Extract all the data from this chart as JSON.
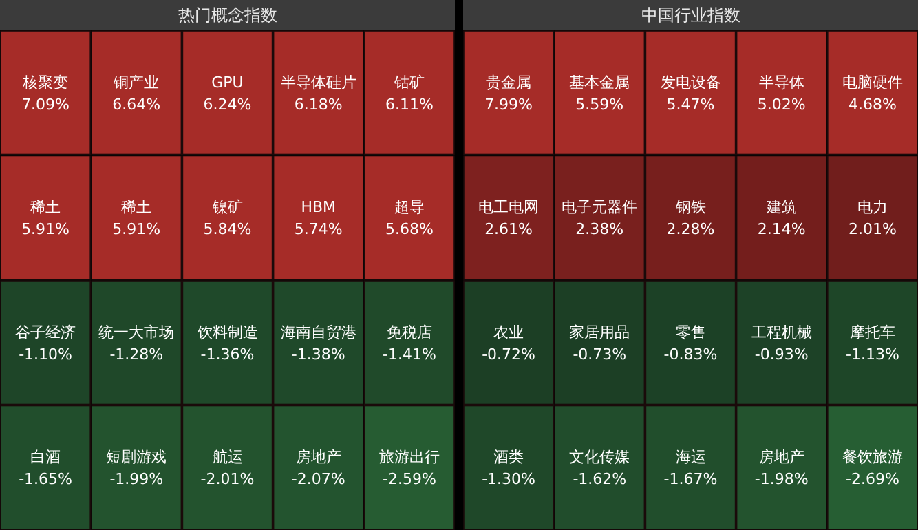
{
  "chart_data": [
    {
      "type": "other",
      "title": "热门概念指数",
      "categories": [
        "核聚变",
        "铜产业",
        "GPU",
        "半导体硅片",
        "钴矿",
        "稀土",
        "稀土",
        "镍矿",
        "HBM",
        "超导",
        "谷子经济",
        "统一大市场",
        "饮料制造",
        "海南自贸港",
        "免税店",
        "白酒",
        "短剧游戏",
        "航运",
        "房地产",
        "旅游出行"
      ],
      "values": [
        7.09,
        6.64,
        6.24,
        6.18,
        6.11,
        5.91,
        5.91,
        5.84,
        5.74,
        5.68,
        -1.1,
        -1.28,
        -1.36,
        -1.38,
        -1.41,
        -1.65,
        -1.99,
        -2.01,
        -2.07,
        -2.59
      ],
      "value_labels": [
        "7.09%",
        "6.64%",
        "6.24%",
        "6.18%",
        "6.11%",
        "5.91%",
        "5.91%",
        "5.84%",
        "5.74%",
        "5.68%",
        "-1.10%",
        "-1.28%",
        "-1.36%",
        "-1.38%",
        "-1.41%",
        "-1.65%",
        "-1.99%",
        "-2.01%",
        "-2.07%",
        "-2.59%"
      ]
    },
    {
      "type": "other",
      "title": "中国行业指数",
      "categories": [
        "贵金属",
        "基本金属",
        "发电设备",
        "半导体",
        "电脑硬件",
        "电工电网",
        "电子元器件",
        "钢铁",
        "建筑",
        "电力",
        "农业",
        "家居用品",
        "零售",
        "工程机械",
        "摩托车",
        "酒类",
        "文化传媒",
        "海运",
        "房地产",
        "餐饮旅游"
      ],
      "values": [
        7.99,
        5.59,
        5.47,
        5.02,
        4.68,
        2.61,
        2.38,
        2.28,
        2.14,
        2.01,
        -0.72,
        -0.73,
        -0.83,
        -0.93,
        -1.13,
        -1.3,
        -1.62,
        -1.67,
        -1.98,
        -2.69
      ],
      "value_labels": [
        "7.99%",
        "5.59%",
        "5.47%",
        "5.02%",
        "4.68%",
        "2.61%",
        "2.38%",
        "2.28%",
        "2.14%",
        "2.01%",
        "-0.72%",
        "-0.73%",
        "-0.83%",
        "-0.93%",
        "-1.13%",
        "-1.30%",
        "-1.62%",
        "-1.67%",
        "-1.98%",
        "-2.69%"
      ]
    }
  ]
}
